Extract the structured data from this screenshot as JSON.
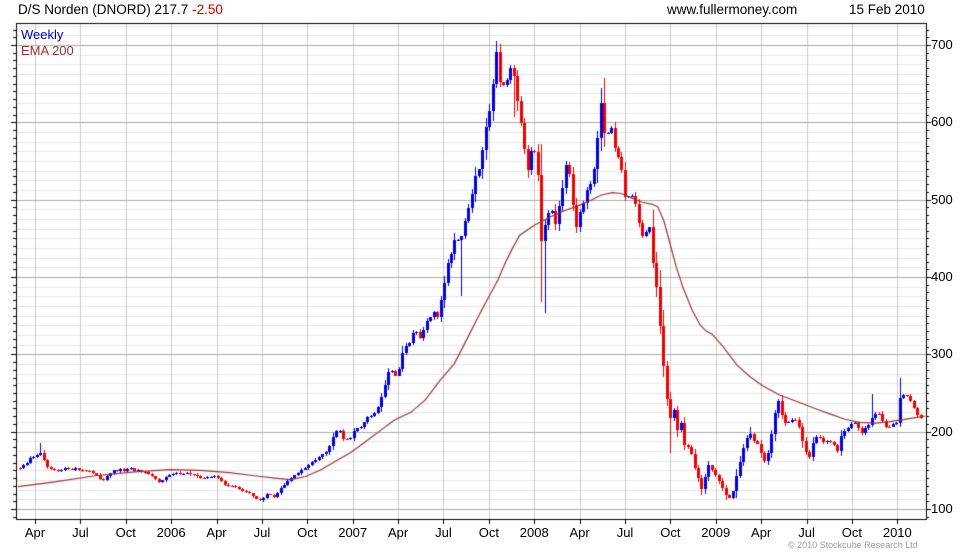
{
  "header": {
    "title_symbol": "D/S Norden (DNORD) 217.7",
    "title_change": "-2.50",
    "site": "www.fullermoney.com",
    "date": "15 Feb 2010"
  },
  "legend": {
    "series1": "Weekly",
    "series2": "EMA 200"
  },
  "footer": {
    "copyright": "© 2010 Stockcube Research Ltd"
  },
  "colors": {
    "candle_up": "#0000e0",
    "candle_down": "#ee0000",
    "ema_line": "#993333",
    "change_text": "#cc0000",
    "legend_weekly": "#0000cc",
    "grid_major": "#aaaaaa",
    "grid_minor": "#e7e7e7",
    "grid_vertical": "#cccccc",
    "axis": "#000000",
    "copyright_text": "#999999"
  },
  "chart_data": {
    "type": "candlestick",
    "title": "D/S Norden (DNORD)",
    "last_price": 217.7,
    "change": -2.5,
    "frequency": "Weekly",
    "overlay": "EMA 200",
    "x_axis": {
      "labels": [
        "Apr",
        "Jul",
        "Oct",
        "2006",
        "Apr",
        "Jul",
        "Oct",
        "2007",
        "Apr",
        "Jul",
        "Oct",
        "2008",
        "Apr",
        "Jul",
        "Oct",
        "2009",
        "Apr",
        "Jul",
        "Oct",
        "2010"
      ],
      "first_label_t": 2005.25,
      "label_step": 0.25,
      "data_start": 2005.165,
      "data_end": 2010.129
    },
    "y_axis": {
      "ticks": [
        700,
        600,
        500,
        400,
        300,
        200,
        100
      ],
      "min": 87,
      "max": 728,
      "minor_step": 12.5,
      "tick_step": 10
    },
    "series": [
      {
        "name": "Weekly",
        "type": "candlestick",
        "close_anchors": [
          [
            2005.156,
            152
          ],
          [
            2005.189,
            155
          ],
          [
            2005.222,
            165
          ],
          [
            2005.256,
            170
          ],
          [
            2005.278,
            172
          ],
          [
            2005.305,
            158
          ],
          [
            2005.333,
            150
          ],
          [
            2005.377,
            148
          ],
          [
            2005.432,
            153
          ],
          [
            2005.487,
            151
          ],
          [
            2005.542,
            150
          ],
          [
            2005.586,
            143
          ],
          [
            2005.619,
            138
          ],
          [
            2005.663,
            147
          ],
          [
            2005.718,
            150
          ],
          [
            2005.784,
            151
          ],
          [
            2005.84,
            147
          ],
          [
            2005.895,
            142
          ],
          [
            2005.928,
            135
          ],
          [
            2005.966,
            141
          ],
          [
            2006.01,
            145
          ],
          [
            2006.06,
            147
          ],
          [
            2006.115,
            145
          ],
          [
            2006.159,
            139
          ],
          [
            2006.203,
            143
          ],
          [
            2006.247,
            141
          ],
          [
            2006.291,
            133
          ],
          [
            2006.335,
            129
          ],
          [
            2006.379,
            126
          ],
          [
            2006.424,
            120
          ],
          [
            2006.468,
            114
          ],
          [
            2006.501,
            111
          ],
          [
            2006.534,
            121
          ],
          [
            2006.567,
            116
          ],
          [
            2006.6,
            126
          ],
          [
            2006.644,
            136
          ],
          [
            2006.688,
            146
          ],
          [
            2006.732,
            152
          ],
          [
            2006.776,
            160
          ],
          [
            2006.82,
            170
          ],
          [
            2006.864,
            178
          ],
          [
            2006.897,
            196
          ],
          [
            2006.919,
            208
          ],
          [
            2006.952,
            190
          ],
          [
            2006.985,
            193
          ],
          [
            2007.018,
            203
          ],
          [
            2007.062,
            212
          ],
          [
            2007.106,
            222
          ],
          [
            2007.14,
            232
          ],
          [
            2007.173,
            258
          ],
          [
            2007.206,
            285
          ],
          [
            2007.239,
            268
          ],
          [
            2007.272,
            298
          ],
          [
            2007.305,
            315
          ],
          [
            2007.338,
            330
          ],
          [
            2007.371,
            320
          ],
          [
            2007.404,
            340
          ],
          [
            2007.437,
            352
          ],
          [
            2007.465,
            348
          ],
          [
            2007.498,
            390
          ],
          [
            2007.531,
            425
          ],
          [
            2007.564,
            450
          ],
          [
            2007.602,
            455
          ],
          [
            2007.635,
            490
          ],
          [
            2007.668,
            520
          ],
          [
            2007.701,
            545
          ],
          [
            2007.74,
            600
          ],
          [
            2007.767,
            645
          ],
          [
            2007.789,
            690
          ],
          [
            2007.812,
            655
          ],
          [
            2007.839,
            645
          ],
          [
            2007.861,
            668
          ],
          [
            2007.889,
            650
          ],
          [
            2007.917,
            612
          ],
          [
            2007.944,
            570
          ],
          [
            2007.966,
            528
          ],
          [
            2007.988,
            575
          ],
          [
            2008.016,
            556
          ],
          [
            2008.038,
            448
          ],
          [
            2008.06,
            470
          ],
          [
            2008.087,
            498
          ],
          [
            2008.115,
            472
          ],
          [
            2008.142,
            502
          ],
          [
            2008.17,
            540
          ],
          [
            2008.197,
            534
          ],
          [
            2008.225,
            465
          ],
          [
            2008.252,
            488
          ],
          [
            2008.28,
            506
          ],
          [
            2008.307,
            514
          ],
          [
            2008.335,
            542
          ],
          [
            2008.363,
            628
          ],
          [
            2008.39,
            572
          ],
          [
            2008.418,
            600
          ],
          [
            2008.445,
            565
          ],
          [
            2008.473,
            542
          ],
          [
            2008.5,
            505
          ],
          [
            2008.528,
            512
          ],
          [
            2008.556,
            492
          ],
          [
            2008.583,
            468
          ],
          [
            2008.605,
            442
          ],
          [
            2008.627,
            480
          ],
          [
            2008.649,
            428
          ],
          [
            2008.671,
            392
          ],
          [
            2008.693,
            330
          ],
          [
            2008.715,
            276
          ],
          [
            2008.743,
            212
          ],
          [
            2008.765,
            230
          ],
          [
            2008.787,
            200
          ],
          [
            2008.809,
            212
          ],
          [
            2008.831,
            174
          ],
          [
            2008.853,
            186
          ],
          [
            2008.875,
            158
          ],
          [
            2008.897,
            146
          ],
          [
            2008.919,
            124
          ],
          [
            2008.941,
            142
          ],
          [
            2008.963,
            157
          ],
          [
            2008.985,
            149
          ],
          [
            2009.007,
            141
          ],
          [
            2009.029,
            132
          ],
          [
            2009.051,
            119
          ],
          [
            2009.073,
            114
          ],
          [
            2009.095,
            123
          ],
          [
            2009.117,
            148
          ],
          [
            2009.139,
            166
          ],
          [
            2009.161,
            186
          ],
          [
            2009.183,
            198
          ],
          [
            2009.205,
            190
          ],
          [
            2009.227,
            183
          ],
          [
            2009.249,
            171
          ],
          [
            2009.271,
            159
          ],
          [
            2009.293,
            178
          ],
          [
            2009.315,
            212
          ],
          [
            2009.337,
            247
          ],
          [
            2009.359,
            226
          ],
          [
            2009.381,
            214
          ],
          [
            2009.403,
            211
          ],
          [
            2009.425,
            217
          ],
          [
            2009.447,
            214
          ],
          [
            2009.469,
            194
          ],
          [
            2009.491,
            178
          ],
          [
            2009.513,
            165
          ],
          [
            2009.535,
            186
          ],
          [
            2009.557,
            192
          ],
          [
            2009.579,
            190
          ],
          [
            2009.601,
            186
          ],
          [
            2009.623,
            189
          ],
          [
            2009.645,
            184
          ],
          [
            2009.667,
            173
          ],
          [
            2009.689,
            197
          ],
          [
            2009.711,
            204
          ],
          [
            2009.733,
            207
          ],
          [
            2009.755,
            212
          ],
          [
            2009.777,
            206
          ],
          [
            2009.799,
            197
          ],
          [
            2009.821,
            204
          ],
          [
            2009.843,
            212
          ],
          [
            2009.865,
            221
          ],
          [
            2009.887,
            227
          ],
          [
            2009.909,
            217
          ],
          [
            2009.931,
            208
          ],
          [
            2009.953,
            207
          ],
          [
            2009.975,
            211
          ],
          [
            2009.997,
            213
          ],
          [
            2010.019,
            252
          ],
          [
            2010.041,
            240
          ],
          [
            2010.063,
            247
          ],
          [
            2010.085,
            232
          ],
          [
            2010.107,
            224
          ],
          [
            2010.129,
            217.7
          ]
        ],
        "spikes": [
          {
            "t": 2005.278,
            "high": 185
          },
          {
            "t": 2007.602,
            "low": 376
          },
          {
            "t": 2007.789,
            "high": 697
          },
          {
            "t": 2007.812,
            "high": 700
          },
          {
            "t": 2007.889,
            "low": 607
          },
          {
            "t": 2008.038,
            "low": 368
          },
          {
            "t": 2008.06,
            "low": 353
          },
          {
            "t": 2008.363,
            "high": 645
          },
          {
            "t": 2008.39,
            "high": 657
          },
          {
            "t": 2008.743,
            "low": 172
          },
          {
            "t": 2008.919,
            "low": 118
          },
          {
            "t": 2009.051,
            "low": 112
          },
          {
            "t": 2009.183,
            "high": 206
          },
          {
            "t": 2009.865,
            "high": 249
          },
          {
            "t": 2010.019,
            "high": 270
          }
        ]
      },
      {
        "name": "EMA 200",
        "type": "line",
        "points": [
          [
            2005.156,
            129
          ],
          [
            2005.36,
            135
          ],
          [
            2005.58,
            143
          ],
          [
            2005.8,
            148
          ],
          [
            2005.99,
            151
          ],
          [
            2006.16,
            150
          ],
          [
            2006.32,
            147
          ],
          [
            2006.46,
            143
          ],
          [
            2006.57,
            140
          ],
          [
            2006.66,
            138
          ],
          [
            2006.74,
            142
          ],
          [
            2006.82,
            150
          ],
          [
            2006.9,
            161
          ],
          [
            2006.99,
            173
          ],
          [
            2007.07,
            187
          ],
          [
            2007.15,
            201
          ],
          [
            2007.23,
            215
          ],
          [
            2007.32,
            225
          ],
          [
            2007.4,
            241
          ],
          [
            2007.48,
            266
          ],
          [
            2007.56,
            288
          ],
          [
            2007.63,
            320
          ],
          [
            2007.69,
            348
          ],
          [
            2007.76,
            379
          ],
          [
            2007.8,
            396
          ],
          [
            2007.84,
            418
          ],
          [
            2007.88,
            437
          ],
          [
            2007.92,
            454
          ],
          [
            2008.0,
            467
          ],
          [
            2008.09,
            478
          ],
          [
            2008.17,
            486
          ],
          [
            2008.24,
            492
          ],
          [
            2008.31,
            499
          ],
          [
            2008.37,
            506
          ],
          [
            2008.43,
            509
          ],
          [
            2008.48,
            508
          ],
          [
            2008.54,
            502
          ],
          [
            2008.59,
            497
          ],
          [
            2008.65,
            494
          ],
          [
            2008.68,
            491
          ],
          [
            2008.715,
            472
          ],
          [
            2008.748,
            443
          ],
          [
            2008.781,
            414
          ],
          [
            2008.82,
            386
          ],
          [
            2008.87,
            357
          ],
          [
            2008.914,
            338
          ],
          [
            2008.947,
            330
          ],
          [
            2008.98,
            326
          ],
          [
            2009.04,
            310
          ],
          [
            2009.117,
            286
          ],
          [
            2009.189,
            271
          ],
          [
            2009.26,
            259
          ],
          [
            2009.354,
            247
          ],
          [
            2009.447,
            239
          ],
          [
            2009.557,
            229
          ],
          [
            2009.64,
            222
          ],
          [
            2009.711,
            216
          ],
          [
            2009.794,
            212
          ],
          [
            2009.881,
            211
          ],
          [
            2009.958,
            213
          ],
          [
            2010.041,
            216
          ],
          [
            2010.151,
            220
          ]
        ]
      }
    ]
  }
}
